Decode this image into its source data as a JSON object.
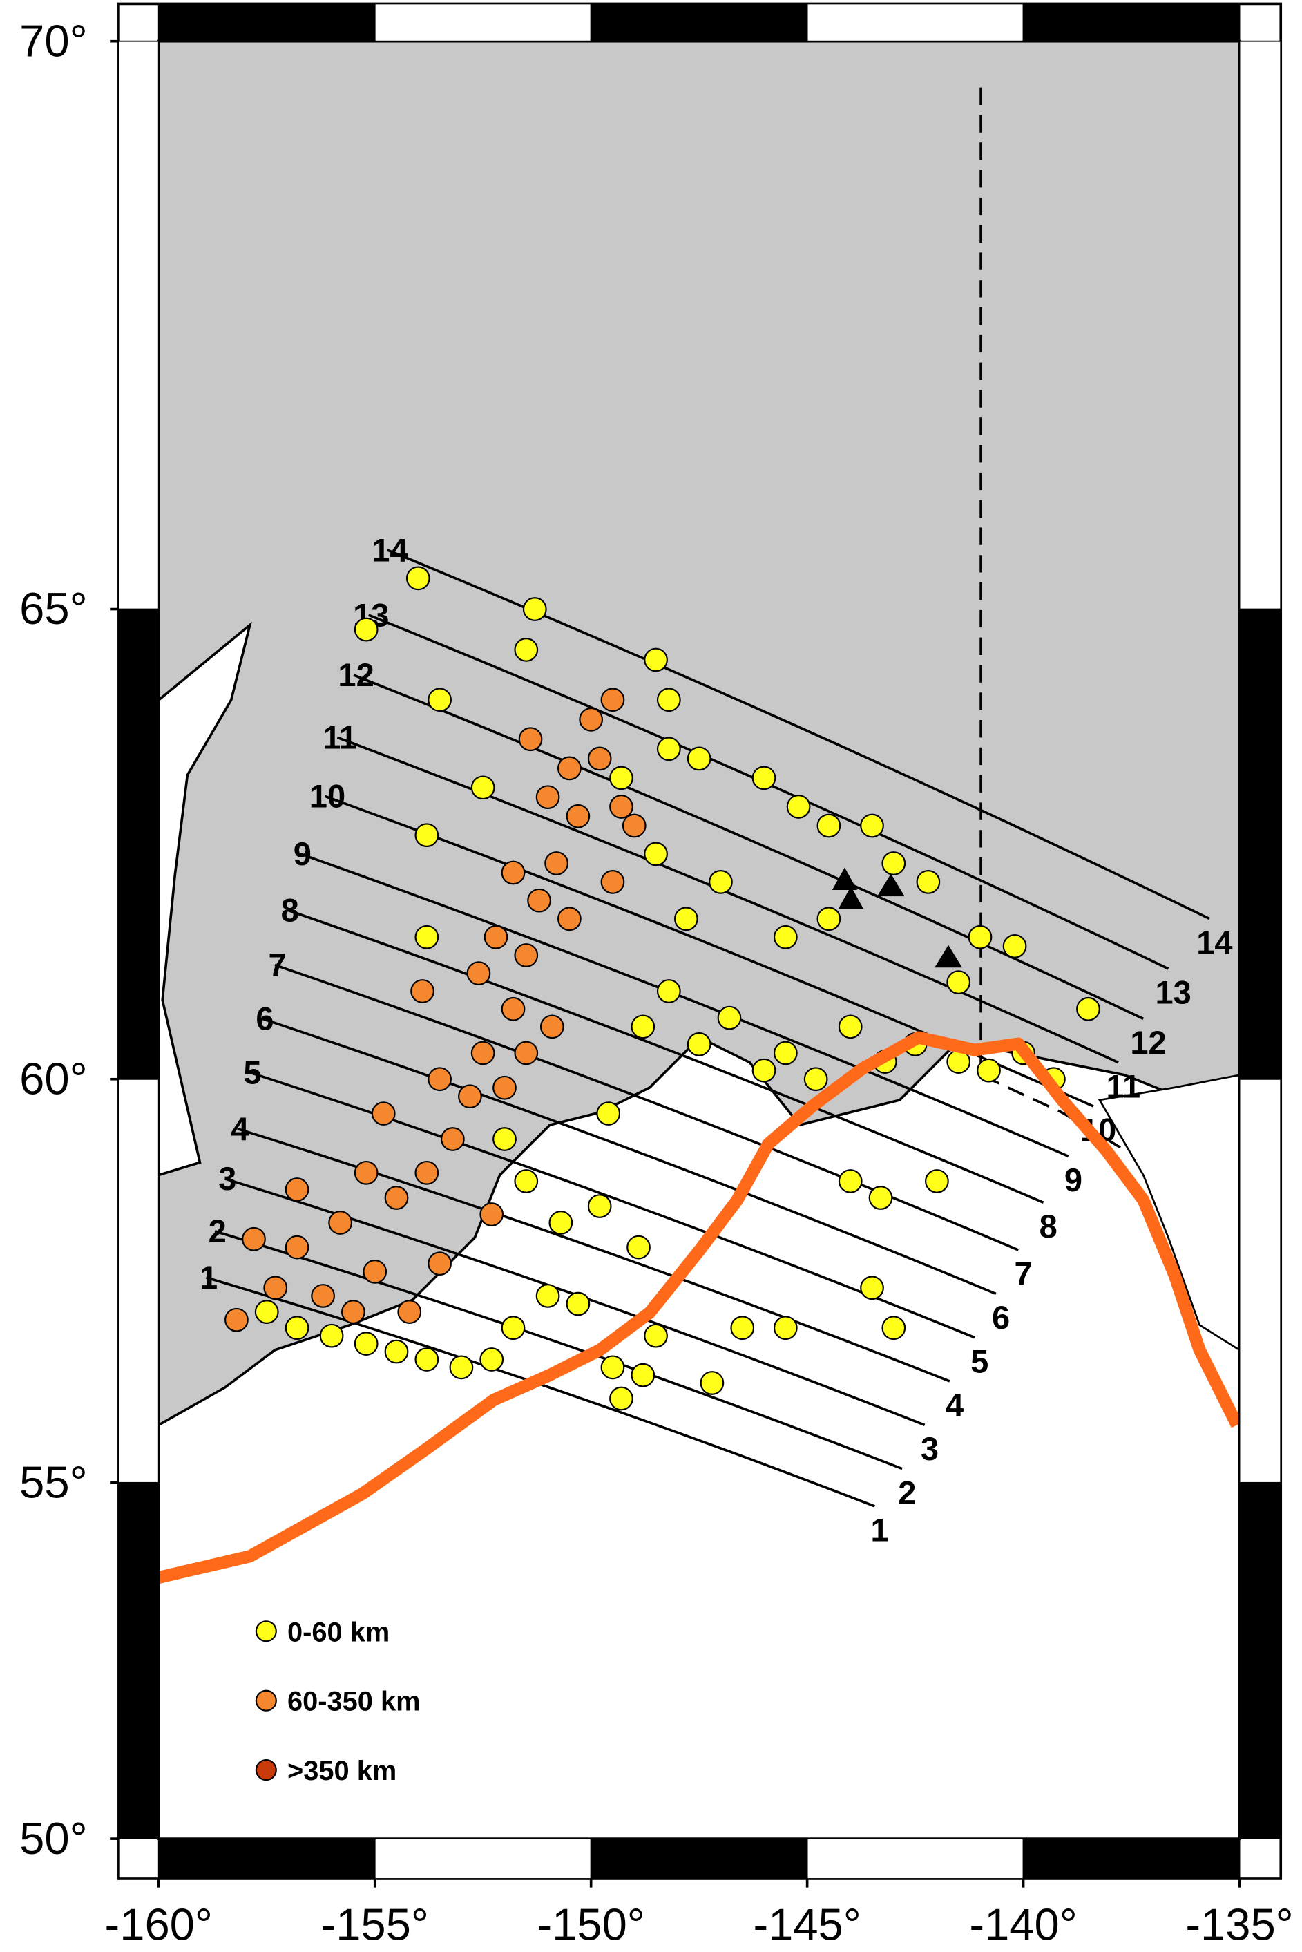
{
  "map": {
    "lon_ticks": [
      {
        "value": -160,
        "label": "-160°"
      },
      {
        "value": -155,
        "label": "-155°"
      },
      {
        "value": -150,
        "label": "-150°"
      },
      {
        "value": -145,
        "label": "-145°"
      },
      {
        "value": -140,
        "label": "-140°"
      },
      {
        "value": -135,
        "label": "-135°"
      }
    ],
    "lat_ticks": [
      {
        "value": 50,
        "label": "50°"
      },
      {
        "value": 55,
        "label": "55°"
      },
      {
        "value": 60,
        "label": "60°"
      },
      {
        "value": 65,
        "label": "65°"
      },
      {
        "value": 70,
        "label": "70°"
      }
    ],
    "profiles": [
      "1",
      "2",
      "3",
      "4",
      "5",
      "6",
      "7",
      "8",
      "9",
      "10",
      "11",
      "12",
      "13",
      "14"
    ],
    "depth_classes": [
      {
        "label": "0-60 km",
        "color": "#ffff1a",
        "events": [
          [
            -157.5,
            57.2
          ],
          [
            -156.8,
            57.0
          ],
          [
            -156,
            56.9
          ],
          [
            -155.2,
            56.8
          ],
          [
            -154.5,
            56.7
          ],
          [
            -153.8,
            56.6
          ],
          [
            -153,
            56.5
          ],
          [
            -152.3,
            56.6
          ],
          [
            -151.8,
            57.0
          ],
          [
            -151,
            57.4
          ],
          [
            -150.3,
            57.3
          ],
          [
            -149.5,
            56.5
          ],
          [
            -149.3,
            56.1
          ],
          [
            -148.8,
            56.4
          ],
          [
            -148.5,
            56.9
          ],
          [
            -147.2,
            56.3
          ],
          [
            -149.8,
            58.5
          ],
          [
            -148.9,
            58.0
          ],
          [
            -150.7,
            58.3
          ],
          [
            -151.5,
            58.8
          ],
          [
            -152,
            59.3
          ],
          [
            -149.6,
            59.6
          ],
          [
            -148.8,
            60.6
          ],
          [
            -148.2,
            61.0
          ],
          [
            -147.5,
            60.4
          ],
          [
            -146.8,
            60.7
          ],
          [
            -146,
            60.1
          ],
          [
            -145.5,
            60.3
          ],
          [
            -144.8,
            60.0
          ],
          [
            -144,
            60.6
          ],
          [
            -143.2,
            60.2
          ],
          [
            -142.5,
            60.4
          ],
          [
            -141.5,
            60.2
          ],
          [
            -140.8,
            60.1
          ],
          [
            -140,
            60.3
          ],
          [
            -139.3,
            60.0
          ],
          [
            -144,
            58.8
          ],
          [
            -143.3,
            58.6
          ],
          [
            -143.5,
            57.5
          ],
          [
            -143,
            57.0
          ],
          [
            -142,
            58.8
          ],
          [
            -146.5,
            57.0
          ],
          [
            -145.5,
            57.0
          ],
          [
            -147.8,
            61.8
          ],
          [
            -147,
            62.2
          ],
          [
            -148.5,
            62.5
          ],
          [
            -149.3,
            63.3
          ],
          [
            -148.2,
            63.6
          ],
          [
            -147.5,
            63.5
          ],
          [
            -146,
            63.3
          ],
          [
            -145.2,
            63.0
          ],
          [
            -144.5,
            62.8
          ],
          [
            -143.5,
            62.8
          ],
          [
            -143,
            62.4
          ],
          [
            -142.2,
            62.2
          ],
          [
            -141,
            61.6
          ],
          [
            -140.2,
            61.5
          ],
          [
            -138.5,
            60.8
          ],
          [
            -148.5,
            64.5
          ],
          [
            -148.2,
            64.1
          ],
          [
            -151.3,
            65.0
          ],
          [
            -151.5,
            64.6
          ],
          [
            -153.5,
            64.1
          ],
          [
            -154,
            65.3
          ],
          [
            -155.2,
            64.8
          ],
          [
            -152.5,
            63.2
          ],
          [
            -153.8,
            62.7
          ],
          [
            -153.8,
            61.6
          ],
          [
            -144.5,
            61.8
          ],
          [
            -145.5,
            61.6
          ],
          [
            -141.5,
            61.1
          ]
        ]
      },
      {
        "label": "60-350 km",
        "color": "#f5882f",
        "events": [
          [
            -158.2,
            57.1
          ],
          [
            -157.3,
            57.5
          ],
          [
            -156.8,
            58.0
          ],
          [
            -155.8,
            58.3
          ],
          [
            -155,
            57.7
          ],
          [
            -154.2,
            57.2
          ],
          [
            -153.5,
            57.8
          ],
          [
            -154.5,
            58.6
          ],
          [
            -153.8,
            58.9
          ],
          [
            -153.2,
            59.3
          ],
          [
            -152.8,
            59.8
          ],
          [
            -153.5,
            60.0
          ],
          [
            -152.5,
            60.3
          ],
          [
            -152,
            59.9
          ],
          [
            -151.8,
            60.8
          ],
          [
            -152.6,
            61.2
          ],
          [
            -152.2,
            61.6
          ],
          [
            -151.5,
            61.4
          ],
          [
            -151.2,
            62.0
          ],
          [
            -151.8,
            62.3
          ],
          [
            -150.8,
            62.4
          ],
          [
            -150.3,
            62.9
          ],
          [
            -151,
            63.1
          ],
          [
            -150.5,
            63.4
          ],
          [
            -149.8,
            63.5
          ],
          [
            -150,
            63.9
          ],
          [
            -149.5,
            64.1
          ],
          [
            -149,
            62.8
          ],
          [
            -149.5,
            62.2
          ],
          [
            -150.5,
            61.8
          ],
          [
            -151.5,
            60.3
          ],
          [
            -152.3,
            58.4
          ],
          [
            -156.2,
            57.4
          ],
          [
            -155.5,
            57.2
          ],
          [
            -157.8,
            58.1
          ],
          [
            -154.8,
            59.6
          ],
          [
            -153.9,
            61.0
          ],
          [
            -150.9,
            60.6
          ],
          [
            -149.3,
            63.0
          ],
          [
            -151.4,
            63.7
          ],
          [
            -156.8,
            58.7
          ],
          [
            -155.2,
            58.9
          ]
        ]
      },
      {
        "label": ">350 km",
        "color": "#c83a0a",
        "events": []
      }
    ]
  }
}
